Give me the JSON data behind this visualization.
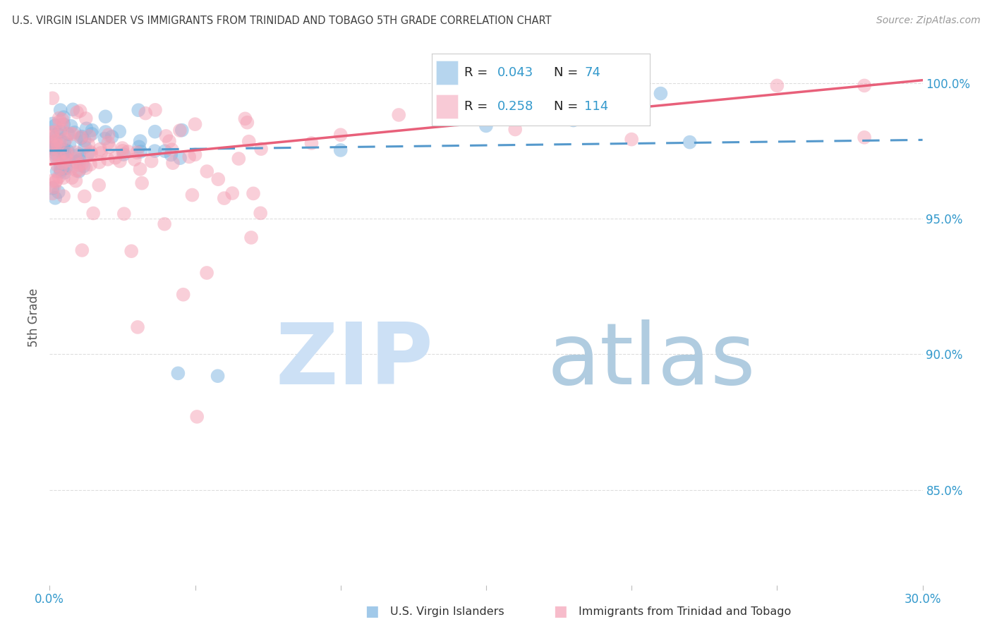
{
  "title": "U.S. VIRGIN ISLANDER VS IMMIGRANTS FROM TRINIDAD AND TOBAGO 5TH GRADE CORRELATION CHART",
  "source": "Source: ZipAtlas.com",
  "ylabel": "5th Grade",
  "xlim": [
    0.0,
    0.3
  ],
  "ylim": [
    0.815,
    1.012
  ],
  "yticks": [
    0.85,
    0.9,
    0.95,
    1.0
  ],
  "ytick_labels": [
    "85.0%",
    "90.0%",
    "95.0%",
    "100.0%"
  ],
  "xticks": [
    0.0,
    0.05,
    0.1,
    0.15,
    0.2,
    0.25,
    0.3
  ],
  "xtick_labels": [
    "0.0%",
    "",
    "",
    "",
    "",
    "",
    "30.0%"
  ],
  "blue_R": 0.043,
  "blue_N": 74,
  "pink_R": 0.258,
  "pink_N": 114,
  "blue_color": "#7ab3e0",
  "pink_color": "#f4a0b5",
  "blue_line_color": "#5599cc",
  "pink_line_color": "#e8607a",
  "legend_label_blue": "U.S. Virgin Islanders",
  "legend_label_pink": "Immigrants from Trinidad and Tobago",
  "title_color": "#404040",
  "source_color": "#999999",
  "grid_color": "#dddddd",
  "tick_label_color": "#3399cc",
  "ylabel_color": "#555555",
  "legend_border_color": "#cccccc",
  "watermark_zip_color": "#cce0f5",
  "watermark_atlas_color": "#b0cce0"
}
